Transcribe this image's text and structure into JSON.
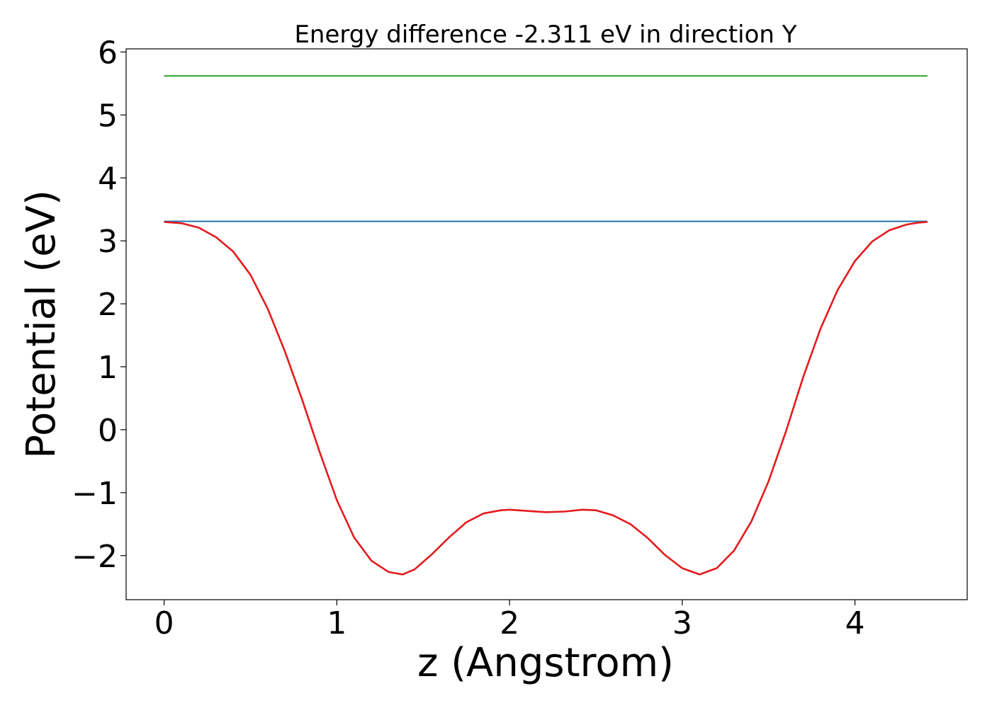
{
  "chart_data": {
    "type": "line",
    "title": "Energy difference -2.311 eV in direction Y",
    "xlabel": "z (Angstrom)",
    "ylabel": "Potential (eV)",
    "xlim": [
      -0.22,
      4.65
    ],
    "ylim": [
      -2.7,
      6.05
    ],
    "xticks": [
      0,
      1,
      2,
      3,
      4
    ],
    "xtick_labels": [
      "0",
      "1",
      "2",
      "3",
      "4"
    ],
    "yticks": [
      -2,
      -1,
      0,
      1,
      2,
      3,
      4,
      5,
      6
    ],
    "ytick_labels": [
      "−2",
      "−1",
      "0",
      "1",
      "2",
      "3",
      "4",
      "5",
      "6"
    ],
    "grid": false,
    "series": [
      {
        "color": "#2ca02c",
        "x": [
          0,
          4.42
        ],
        "y": [
          5.62,
          5.62
        ]
      },
      {
        "color": "#1f77b4",
        "x": [
          0,
          4.42
        ],
        "y": [
          3.31,
          3.31
        ]
      },
      {
        "color": "#e41a1c",
        "x": [
          0,
          0.05,
          0.1,
          0.2,
          0.3,
          0.4,
          0.5,
          0.6,
          0.7,
          0.8,
          0.9,
          1.0,
          1.1,
          1.2,
          1.3,
          1.38,
          1.45,
          1.55,
          1.65,
          1.75,
          1.85,
          1.95,
          2.0,
          2.1,
          2.21,
          2.32,
          2.42,
          2.5,
          2.6,
          2.7,
          2.8,
          2.9,
          3.0,
          3.1,
          3.2,
          3.3,
          3.4,
          3.5,
          3.6,
          3.7,
          3.8,
          3.9,
          4.0,
          4.1,
          4.2,
          4.3,
          4.37,
          4.42
        ],
        "y": [
          3.3,
          3.29,
          3.28,
          3.21,
          3.06,
          2.83,
          2.46,
          1.92,
          1.24,
          0.47,
          -0.35,
          -1.12,
          -1.71,
          -2.08,
          -2.26,
          -2.3,
          -2.22,
          -1.98,
          -1.71,
          -1.47,
          -1.33,
          -1.28,
          -1.27,
          -1.29,
          -1.31,
          -1.3,
          -1.27,
          -1.28,
          -1.36,
          -1.5,
          -1.72,
          -1.99,
          -2.2,
          -2.3,
          -2.2,
          -1.92,
          -1.46,
          -0.82,
          -0.03,
          0.83,
          1.6,
          2.22,
          2.68,
          2.99,
          3.17,
          3.26,
          3.29,
          3.3
        ]
      }
    ]
  }
}
